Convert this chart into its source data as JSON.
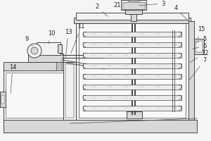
{
  "bg_color": "#e8e8e8",
  "line_color": "#444444",
  "fill_light": "#f2f2f2",
  "fill_mid": "#d8d8d8",
  "fill_dark": "#c0c0c0",
  "lw": 0.7,
  "label_fs": 6.0,
  "label_color": "#222222"
}
